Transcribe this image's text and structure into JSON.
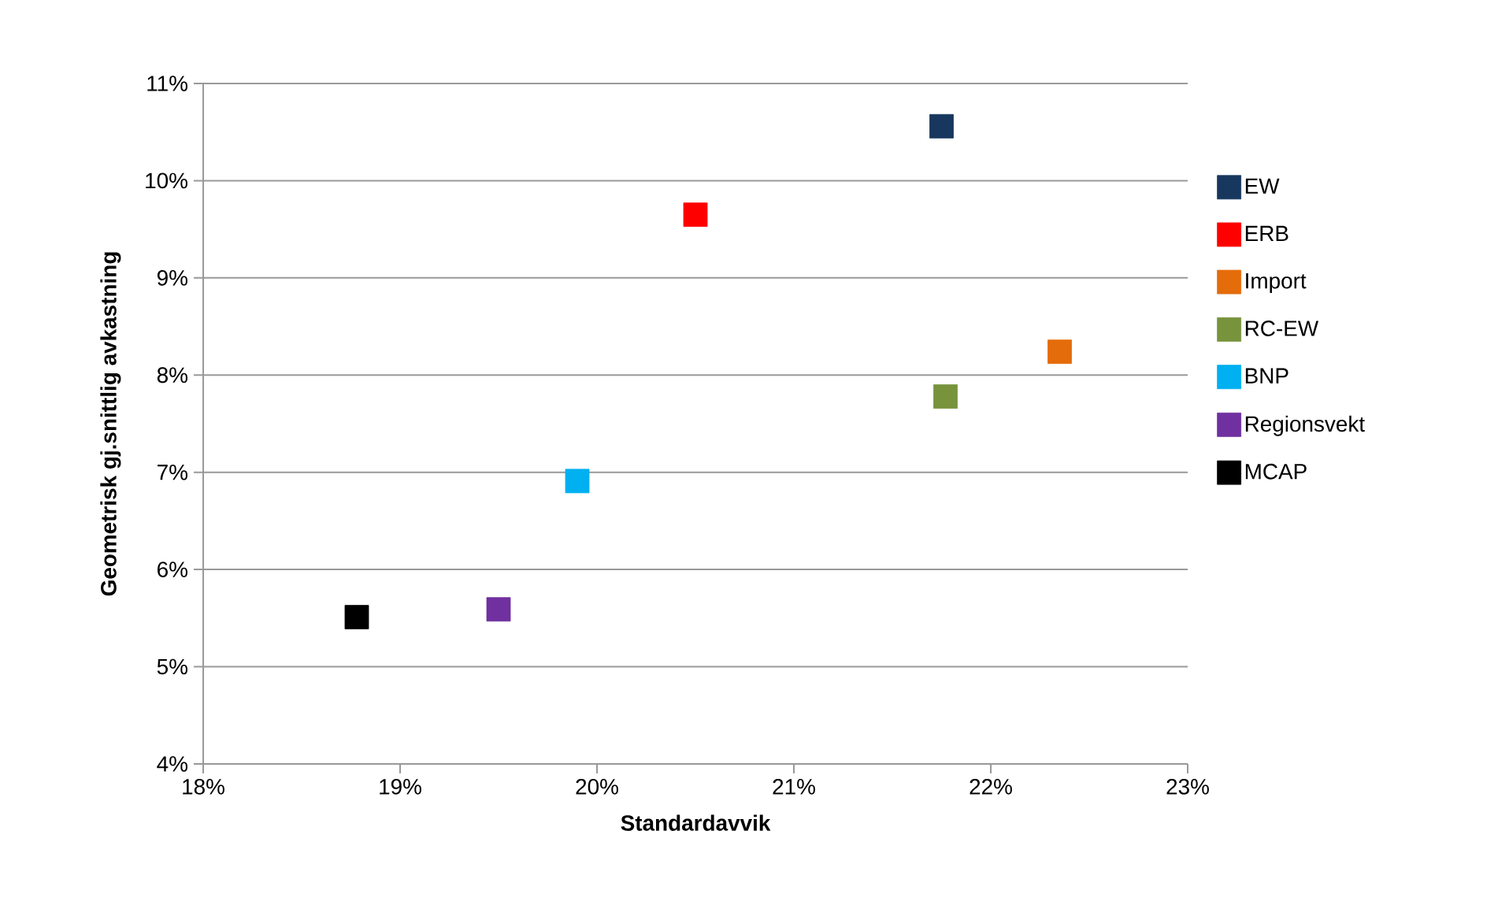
{
  "chart_data": {
    "type": "scatter",
    "xlabel": "Standardavvik",
    "ylabel": "Geometrisk gj.snittlig avkastning",
    "series": [
      {
        "name": "EW",
        "color": "#17375e",
        "x": [
          21.75
        ],
        "values": [
          10.56
        ]
      },
      {
        "name": "ERB",
        "color": "#ff0000",
        "x": [
          20.5
        ],
        "values": [
          9.65
        ]
      },
      {
        "name": "Import",
        "color": "#e46c0a",
        "x": [
          22.35
        ],
        "values": [
          8.24
        ]
      },
      {
        "name": "RC-EW",
        "color": "#77933c",
        "x": [
          21.77
        ],
        "values": [
          7.78
        ]
      },
      {
        "name": "BNP",
        "color": "#00b0f0",
        "x": [
          19.9
        ],
        "values": [
          6.91
        ]
      },
      {
        "name": "Regionsvekt",
        "color": "#7030a0",
        "x": [
          19.5
        ],
        "values": [
          5.59
        ]
      },
      {
        "name": "MCAP",
        "color": "#000000",
        "x": [
          18.78
        ],
        "values": [
          5.51
        ]
      }
    ],
    "xlim": [
      18,
      23
    ],
    "ylim": [
      4,
      11
    ],
    "xticks": [
      {
        "value": 18,
        "label": "18%"
      },
      {
        "value": 19,
        "label": "19%"
      },
      {
        "value": 20,
        "label": "20%"
      },
      {
        "value": 21,
        "label": "21%"
      },
      {
        "value": 22,
        "label": "22%"
      },
      {
        "value": 23,
        "label": "23%"
      }
    ],
    "yticks": [
      {
        "value": 4,
        "label": "4%"
      },
      {
        "value": 5,
        "label": "5%"
      },
      {
        "value": 6,
        "label": "6%"
      },
      {
        "value": 7,
        "label": "7%"
      },
      {
        "value": 8,
        "label": "8%"
      },
      {
        "value": 9,
        "label": "9%"
      },
      {
        "value": 10,
        "label": "10%"
      },
      {
        "value": 11,
        "label": "11%"
      }
    ],
    "grid": "y",
    "legend": "right",
    "marker": "square"
  }
}
